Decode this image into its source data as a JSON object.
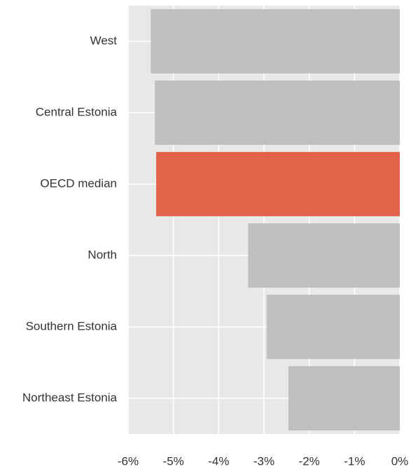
{
  "chart_data": {
    "type": "barh",
    "categories": [
      "West",
      "Central Estonia",
      "OECD median",
      "North",
      "Southern Estonia",
      "Northeast Estonia"
    ],
    "values": [
      -5.5,
      -5.41,
      -5.38,
      -3.35,
      -2.94,
      -2.46
    ],
    "colors": [
      "#bfbfbf",
      "#bfbfbf",
      "#e3634a",
      "#bfbfbf",
      "#bfbfbf",
      "#bfbfbf"
    ],
    "xlim": [
      -6,
      0
    ],
    "xticks": [
      {
        "value": -6,
        "label": "-6%"
      },
      {
        "value": -5,
        "label": "-5%"
      },
      {
        "value": -4,
        "label": "-4%"
      },
      {
        "value": -3,
        "label": "-3%"
      },
      {
        "value": -2,
        "label": "-2%"
      },
      {
        "value": -1,
        "label": "-1%"
      },
      {
        "value": 0,
        "label": "0%"
      }
    ],
    "grid": true
  }
}
